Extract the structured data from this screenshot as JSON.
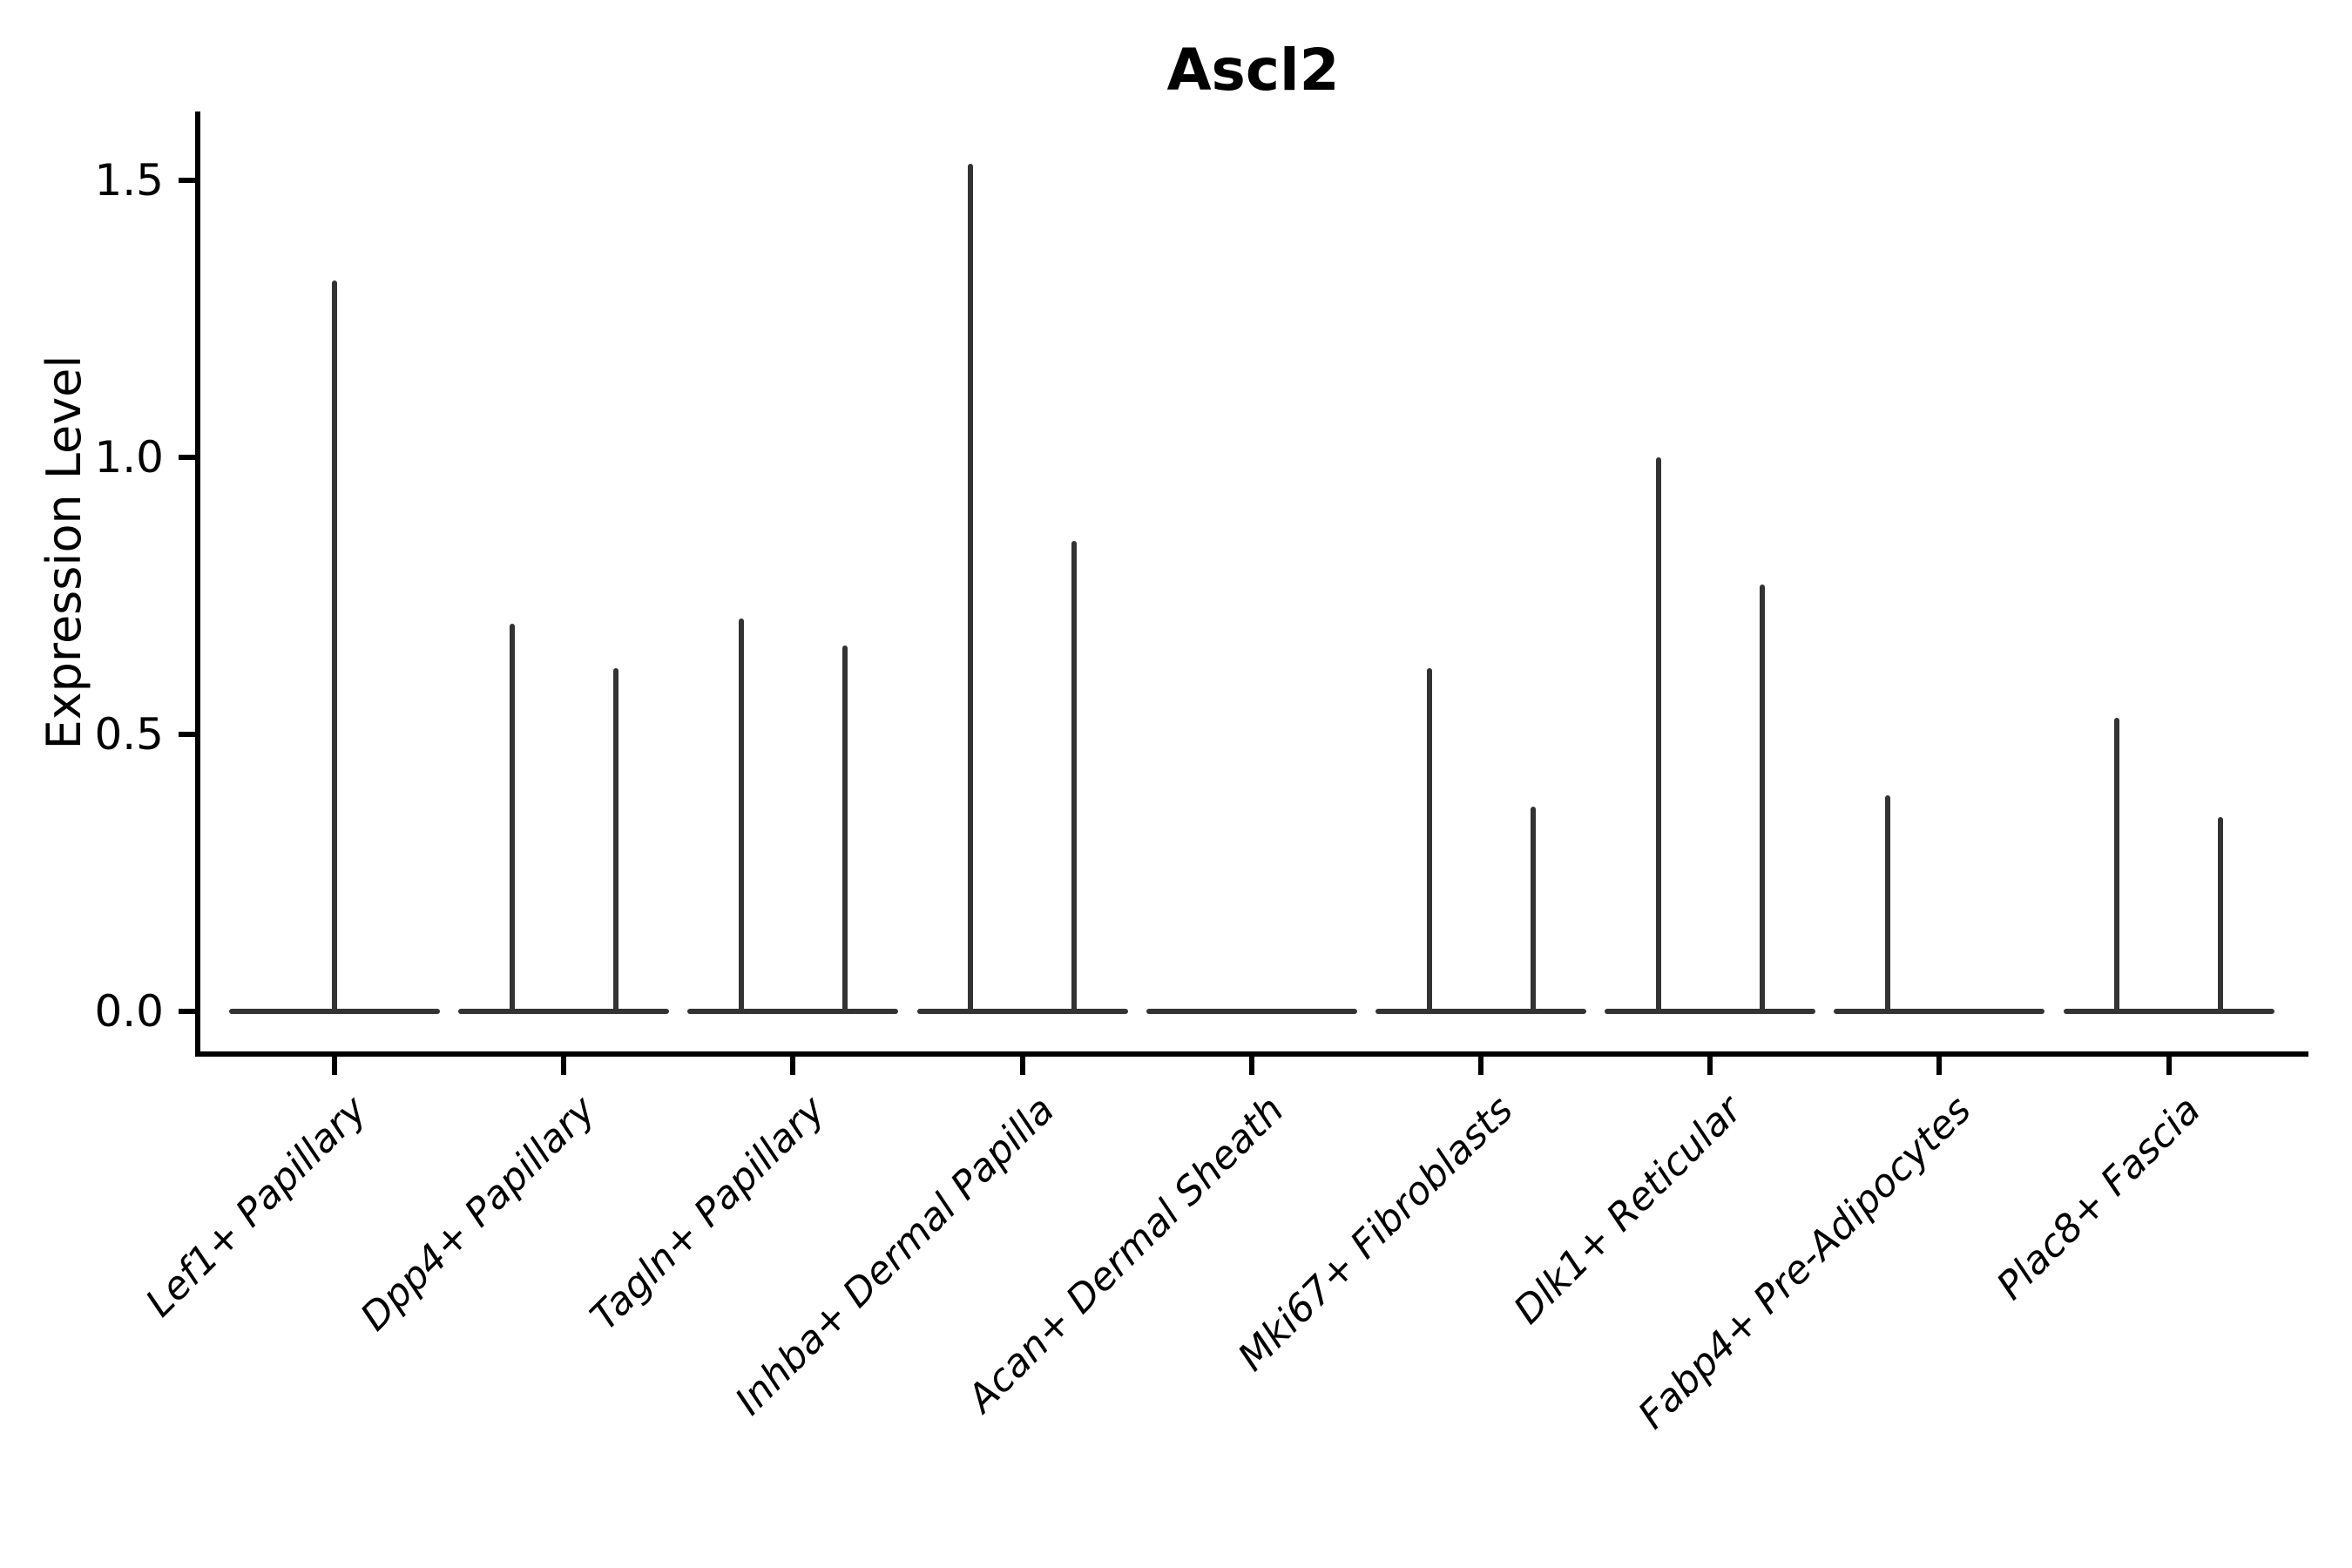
{
  "title": "Ascl2",
  "ylabel": "Expression Level",
  "colors": {
    "violin": "#333333",
    "axis": "#000000",
    "background": "#ffffff"
  },
  "chart_data": {
    "type": "violin",
    "title": "Ascl2",
    "xlabel": "",
    "ylabel": "Expression Level",
    "grid": false,
    "legend": null,
    "ylim": [
      -0.08,
      1.63
    ],
    "yticks": [
      0.0,
      0.5,
      1.0,
      1.5
    ],
    "ytick_labels": [
      "0.0",
      "0.5",
      "1.0",
      "1.5"
    ],
    "categories": [
      "Lef1+ Papillary",
      "Dpp4+ Papillary",
      "Tagln+ Papillary",
      "Inhba+ Dermal Papilla",
      "Acan+ Dermal Sheath",
      "Mki67+ Fibroblasts",
      "Dlk1+ Reticular",
      "Fabp4+ Pre-Adipocytes",
      "Plac8+ Fascia"
    ],
    "violins": [
      {
        "category": "Lef1+ Papillary",
        "baseline_value": 0.0,
        "spikes": [
          {
            "pos": "center",
            "value": 1.32
          }
        ]
      },
      {
        "category": "Dpp4+ Papillary",
        "baseline_value": 0.0,
        "spikes": [
          {
            "pos": "left",
            "value": 0.7
          },
          {
            "pos": "right",
            "value": 0.62
          }
        ]
      },
      {
        "category": "Tagln+ Papillary",
        "baseline_value": 0.0,
        "spikes": [
          {
            "pos": "left",
            "value": 0.71
          },
          {
            "pos": "right",
            "value": 0.66
          }
        ]
      },
      {
        "category": "Inhba+ Dermal Papilla",
        "baseline_value": 0.0,
        "spikes": [
          {
            "pos": "left",
            "value": 1.53
          },
          {
            "pos": "right",
            "value": 0.85
          }
        ]
      },
      {
        "category": "Acan+ Dermal Sheath",
        "baseline_value": 0.0,
        "spikes": []
      },
      {
        "category": "Mki67+ Fibroblasts",
        "baseline_value": 0.0,
        "spikes": [
          {
            "pos": "left",
            "value": 0.62
          },
          {
            "pos": "right",
            "value": 0.37
          }
        ]
      },
      {
        "category": "Dlk1+ Reticular",
        "baseline_value": 0.0,
        "spikes": [
          {
            "pos": "left",
            "value": 1.0
          },
          {
            "pos": "right",
            "value": 0.77
          }
        ]
      },
      {
        "category": "Fabp4+ Pre-Adipocytes",
        "baseline_value": 0.0,
        "spikes": [
          {
            "pos": "left",
            "value": 0.39
          }
        ]
      },
      {
        "category": "Plac8+ Fascia",
        "baseline_value": 0.0,
        "spikes": [
          {
            "pos": "left",
            "value": 0.53
          },
          {
            "pos": "right",
            "value": 0.35
          }
        ]
      }
    ]
  }
}
